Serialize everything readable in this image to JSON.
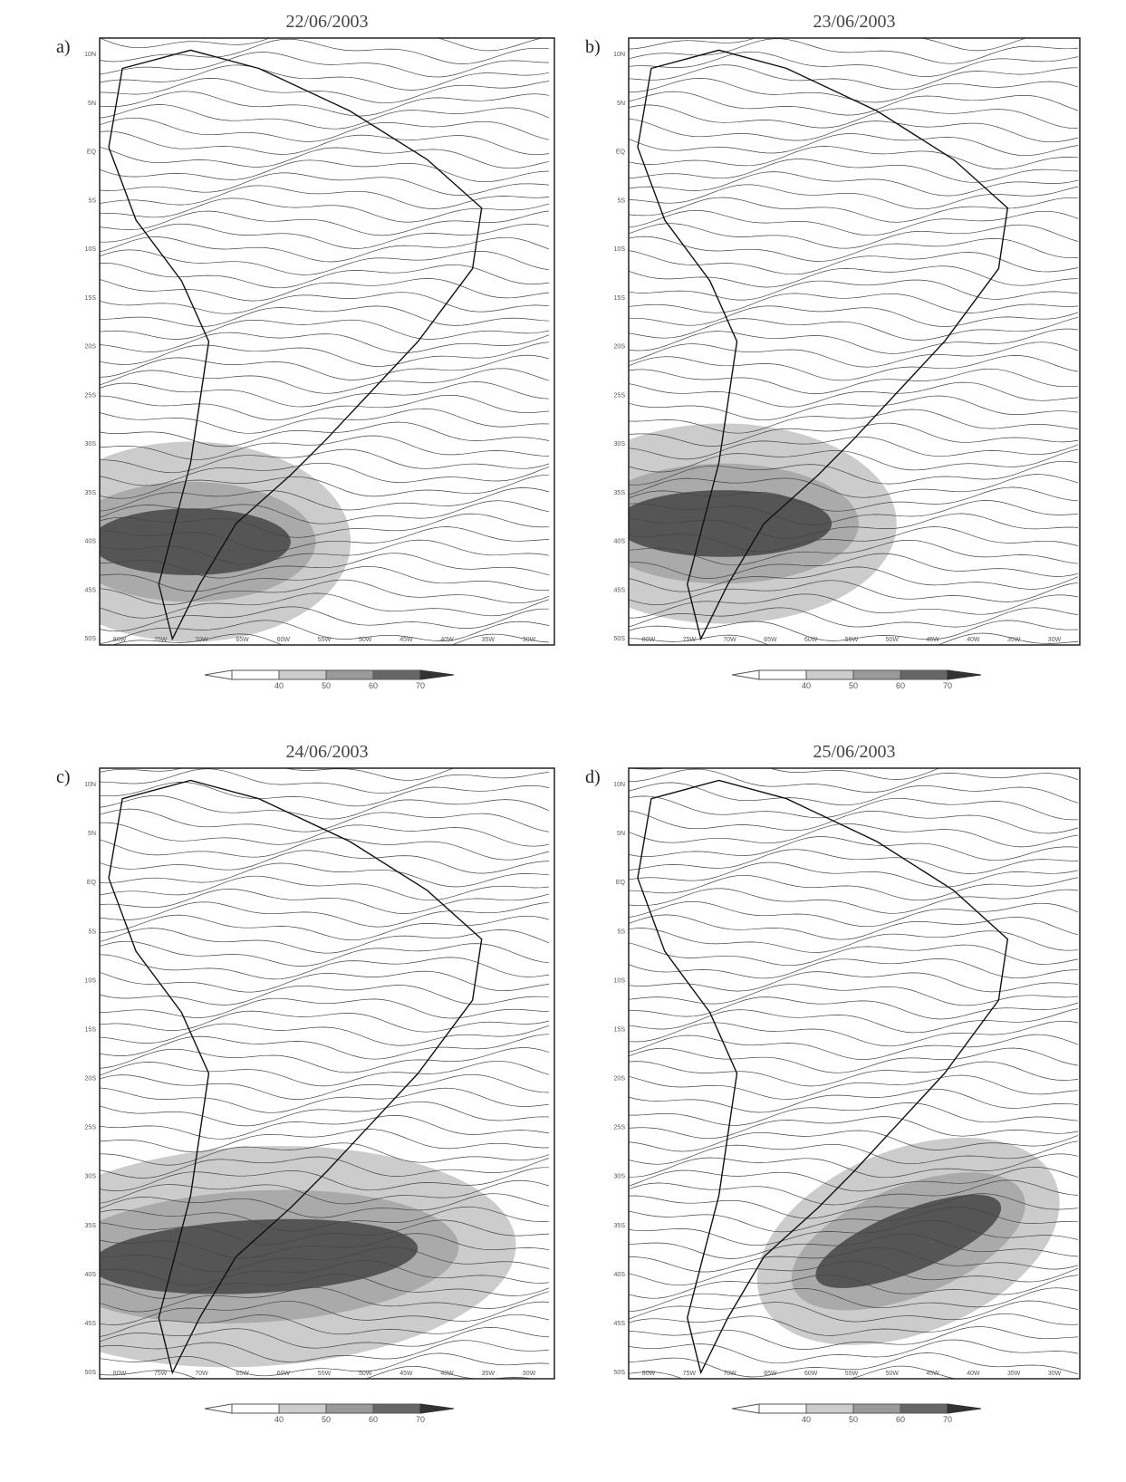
{
  "panels": [
    {
      "label": "a)",
      "date": "22/06/2003",
      "colorbar": [
        "40",
        "50",
        "60",
        "70"
      ]
    },
    {
      "label": "b)",
      "date": "23/06/2003",
      "colorbar": [
        "40",
        "50",
        "60",
        "70"
      ]
    },
    {
      "label": "c)",
      "date": "24/06/2003",
      "colorbar": [
        "40",
        "50",
        "60",
        "70"
      ]
    },
    {
      "label": "d)",
      "date": "25/06/2003",
      "colorbar": [
        "40",
        "50",
        "60",
        "70"
      ]
    }
  ],
  "lat_labels": [
    "10N",
    "5N",
    "EQ",
    "5S",
    "10S",
    "15S",
    "20S",
    "25S",
    "30S",
    "35S",
    "40S",
    "45S",
    "50S"
  ],
  "lon_labels": [
    "80W",
    "75W",
    "70W",
    "65W",
    "60W",
    "55W",
    "50W",
    "45W",
    "40W",
    "35W",
    "30W"
  ]
}
